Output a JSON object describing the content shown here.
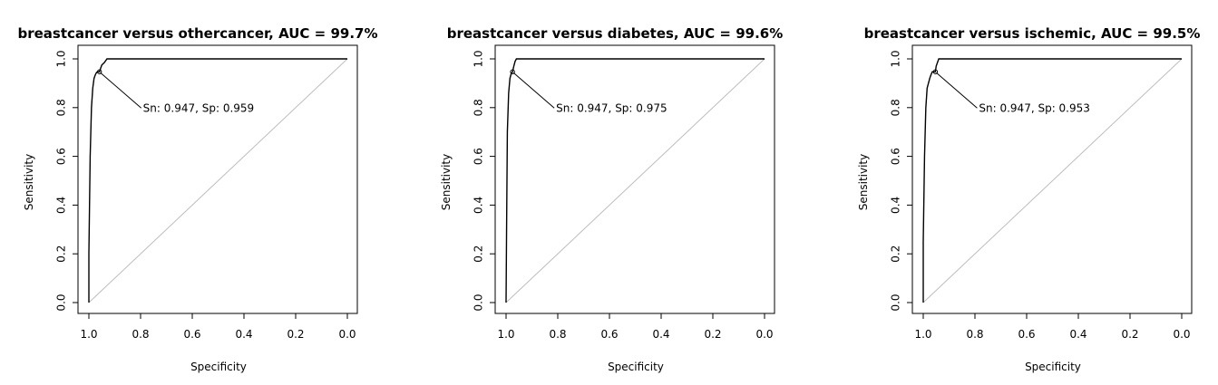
{
  "chart_data": [
    {
      "type": "line",
      "title": "breastcancer versus othercancer, AUC = 99.7%",
      "xlabel": "Specificity",
      "ylabel": "Sensitivity",
      "xlim": [
        1.0,
        0.0
      ],
      "ylim": [
        0.0,
        1.0
      ],
      "xticks": [
        "1.0",
        "0.8",
        "0.6",
        "0.4",
        "0.2",
        "0.0"
      ],
      "yticks": [
        "0.0",
        "0.2",
        "0.4",
        "0.6",
        "0.8",
        "1.0"
      ],
      "grid": false,
      "series": [
        {
          "x": [
            1.0,
            1.0,
            0.995,
            0.99,
            0.985,
            0.98,
            0.975,
            0.97,
            0.965,
            0.959,
            0.955,
            0.95,
            0.94,
            0.93,
            0.0
          ],
          "y": [
            0.0,
            0.2,
            0.6,
            0.8,
            0.88,
            0.92,
            0.935,
            0.945,
            0.947,
            0.947,
            0.96,
            0.975,
            0.985,
            1.0,
            1.0
          ]
        }
      ],
      "reference_line": {
        "x": [
          1.0,
          0.0
        ],
        "y": [
          0.0,
          1.0
        ],
        "color": "#bdbdbd"
      },
      "annotation": {
        "text": "Sn: 0.947, Sp: 0.959",
        "x": 0.959,
        "y": 0.947
      }
    },
    {
      "type": "line",
      "title": "breastcancer versus diabetes, AUC = 99.6%",
      "xlabel": "Specificity",
      "ylabel": "Sensitivity",
      "xlim": [
        1.0,
        0.0
      ],
      "ylim": [
        0.0,
        1.0
      ],
      "xticks": [
        "1.0",
        "0.8",
        "0.6",
        "0.4",
        "0.2",
        "0.0"
      ],
      "yticks": [
        "0.0",
        "0.2",
        "0.4",
        "0.6",
        "0.8",
        "1.0"
      ],
      "grid": false,
      "series": [
        {
          "x": [
            1.0,
            0.998,
            0.995,
            0.99,
            0.985,
            0.98,
            0.975,
            0.97,
            0.965,
            0.96,
            0.0
          ],
          "y": [
            0.0,
            0.3,
            0.7,
            0.86,
            0.92,
            0.94,
            0.947,
            0.97,
            0.99,
            1.0,
            1.0
          ]
        }
      ],
      "reference_line": {
        "x": [
          1.0,
          0.0
        ],
        "y": [
          0.0,
          1.0
        ],
        "color": "#bdbdbd"
      },
      "annotation": {
        "text": "Sn: 0.947, Sp: 0.975",
        "x": 0.975,
        "y": 0.947
      }
    },
    {
      "type": "line",
      "title": "breastcancer versus ischemic, AUC = 99.5%",
      "xlabel": "Specificity",
      "ylabel": "Sensitivity",
      "xlim": [
        1.0,
        0.0
      ],
      "ylim": [
        0.0,
        1.0
      ],
      "xticks": [
        "1.0",
        "0.8",
        "0.6",
        "0.4",
        "0.2",
        "0.0"
      ],
      "yticks": [
        "0.0",
        "0.2",
        "0.4",
        "0.6",
        "0.8",
        "1.0"
      ],
      "grid": false,
      "series": [
        {
          "x": [
            1.0,
            1.0,
            0.995,
            0.99,
            0.985,
            0.98,
            0.975,
            0.97,
            0.965,
            0.953,
            0.95,
            0.94,
            0.0
          ],
          "y": [
            0.0,
            0.25,
            0.6,
            0.8,
            0.88,
            0.9,
            0.92,
            0.935,
            0.947,
            0.947,
            0.97,
            1.0,
            1.0
          ]
        }
      ],
      "reference_line": {
        "x": [
          1.0,
          0.0
        ],
        "y": [
          0.0,
          1.0
        ],
        "color": "#bdbdbd"
      },
      "annotation": {
        "text": "Sn: 0.947, Sp: 0.953",
        "x": 0.953,
        "y": 0.947
      }
    }
  ]
}
